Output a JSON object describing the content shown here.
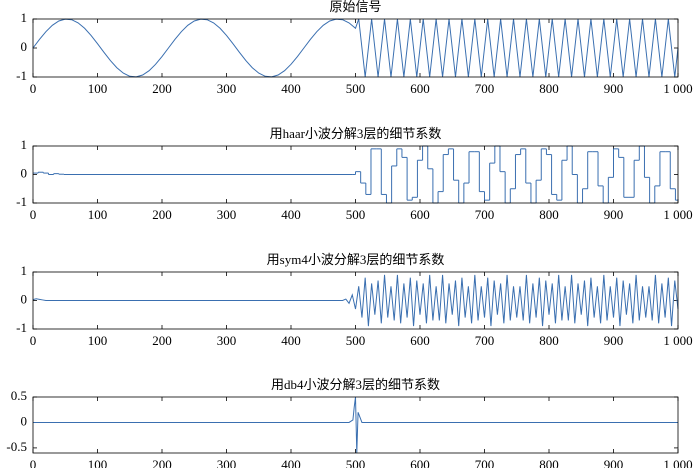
{
  "chart_data": [
    {
      "type": "line",
      "title": "原始信号",
      "color": "#3a6fb0",
      "xlim": [
        0,
        1000
      ],
      "ylim": [
        -1,
        1
      ],
      "xticks": [
        0,
        100,
        200,
        300,
        400,
        500,
        600,
        700,
        800,
        900,
        {
          "value": 1000,
          "label": "1 000"
        }
      ],
      "yticks": [
        -1,
        0,
        1
      ],
      "x": [
        0,
        10,
        20,
        30,
        40,
        50,
        60,
        70,
        80,
        90,
        100,
        110,
        120,
        130,
        140,
        150,
        160,
        170,
        180,
        190,
        200,
        210,
        220,
        230,
        240,
        250,
        260,
        270,
        280,
        290,
        300,
        310,
        320,
        330,
        340,
        350,
        360,
        370,
        380,
        390,
        400,
        410,
        420,
        430,
        440,
        450,
        460,
        470,
        480,
        490,
        500,
        505,
        510,
        515,
        520,
        525,
        530,
        535,
        540,
        545,
        550,
        555,
        560,
        565,
        570,
        575,
        580,
        585,
        590,
        595,
        600,
        605,
        610,
        615,
        620,
        625,
        630,
        635,
        640,
        645,
        650,
        655,
        660,
        665,
        670,
        675,
        680,
        685,
        690,
        695,
        700,
        705,
        710,
        715,
        720,
        725,
        730,
        735,
        740,
        745,
        750,
        755,
        760,
        765,
        770,
        775,
        780,
        785,
        790,
        795,
        800,
        805,
        810,
        815,
        820,
        825,
        830,
        835,
        840,
        845,
        850,
        855,
        860,
        865,
        870,
        875,
        880,
        885,
        890,
        895,
        900,
        905,
        910,
        915,
        920,
        925,
        930,
        935,
        940,
        945,
        950,
        955,
        960,
        965,
        970,
        975,
        980,
        985,
        990,
        995,
        1000
      ],
      "values": [
        0,
        0.295,
        0.563,
        0.782,
        0.931,
        0.997,
        0.975,
        0.866,
        0.68,
        0.434,
        0.149,
        -0.149,
        -0.434,
        -0.68,
        -0.866,
        -0.975,
        -0.997,
        -0.931,
        -0.782,
        -0.563,
        -0.295,
        0,
        0.295,
        0.563,
        0.782,
        0.931,
        0.997,
        0.975,
        0.866,
        0.68,
        0.434,
        0.149,
        -0.149,
        -0.434,
        -0.68,
        -0.866,
        -0.975,
        -0.997,
        -0.931,
        -0.782,
        -0.563,
        -0.295,
        0,
        0.295,
        0.563,
        0.782,
        0.931,
        0.997,
        0.975,
        0.866,
        0.68,
        1,
        0,
        -1,
        0,
        1,
        0,
        -1,
        0,
        1,
        0,
        -1,
        0,
        1,
        0,
        -1,
        0,
        1,
        0,
        -1,
        0,
        1,
        0,
        -1,
        0,
        1,
        0,
        -1,
        0,
        1,
        0,
        -1,
        0,
        1,
        0,
        -1,
        0,
        1,
        0,
        -1,
        0,
        1,
        0,
        -1,
        0,
        1,
        0,
        -1,
        0,
        1,
        0,
        -1,
        0,
        1,
        0,
        -1,
        0,
        1,
        0,
        -1,
        0,
        1,
        0,
        -1,
        0,
        1,
        0,
        -1,
        0,
        1,
        0,
        -1,
        0,
        1,
        0,
        -1,
        0,
        1,
        0,
        -1,
        0,
        1,
        0,
        -1,
        0,
        1,
        0,
        -1,
        0,
        1,
        0,
        -1,
        0,
        1,
        0,
        -1,
        0,
        1,
        0,
        -1,
        0
      ]
    },
    {
      "type": "line",
      "drawstyle": "steps-post",
      "title": "用haar小波分解3层的细节系数",
      "color": "#3a6fb0",
      "xlim": [
        0,
        1000
      ],
      "ylim": [
        -1,
        1
      ],
      "xticks": [
        0,
        100,
        200,
        300,
        400,
        500,
        600,
        700,
        800,
        900,
        {
          "value": 1000,
          "label": "1 000"
        }
      ],
      "yticks": [
        -1,
        0,
        1
      ],
      "x": [
        0,
        8,
        16,
        24,
        32,
        40,
        48,
        496,
        500,
        508,
        516,
        524,
        532,
        540,
        548,
        556,
        564,
        572,
        580,
        588,
        596,
        604,
        612,
        620,
        628,
        636,
        644,
        652,
        660,
        668,
        676,
        684,
        692,
        700,
        708,
        716,
        724,
        732,
        740,
        748,
        756,
        764,
        772,
        780,
        788,
        796,
        804,
        812,
        820,
        828,
        836,
        844,
        852,
        860,
        868,
        876,
        884,
        892,
        900,
        908,
        916,
        924,
        932,
        940,
        948,
        956,
        964,
        972,
        980,
        988,
        996,
        1000
      ],
      "values": [
        0.05,
        0.08,
        0.05,
        0,
        0.03,
        0.01,
        0,
        0,
        0.1,
        -0.3,
        -0.7,
        0.9,
        0.9,
        -0.7,
        -1,
        0.3,
        0.9,
        0.6,
        -0.9,
        -0.8,
        0.5,
        1,
        0.2,
        -1,
        -0.6,
        0.7,
        0.9,
        -0.2,
        -1,
        -0.3,
        0.8,
        0.8,
        -0.6,
        -0.9,
        0.4,
        1,
        0.1,
        -1,
        -0.5,
        0.7,
        0.9,
        -0.3,
        -1,
        -0.2,
        0.9,
        0.7,
        -0.7,
        -0.9,
        0.5,
        1,
        0,
        -1,
        -0.5,
        0.8,
        0.8,
        -0.4,
        -1,
        -0.1,
        0.9,
        0.6,
        -0.8,
        -0.8,
        0.5,
        1,
        -0.1,
        -1,
        -0.4,
        0.8,
        0.8,
        -0.5,
        -0.9,
        -0.9
      ]
    },
    {
      "type": "line",
      "title": "用sym4小波分解3层的细节系数",
      "color": "#3a6fb0",
      "xlim": [
        0,
        1000
      ],
      "ylim": [
        -1,
        1
      ],
      "xticks": [
        0,
        100,
        200,
        300,
        400,
        500,
        600,
        700,
        800,
        900,
        {
          "value": 1000,
          "label": "1 000"
        }
      ],
      "yticks": [
        -1,
        0,
        1
      ],
      "x": [
        0,
        5,
        10,
        15,
        20,
        30,
        480,
        485,
        490,
        495,
        500,
        505,
        510,
        515,
        520,
        525,
        530,
        535,
        540,
        545,
        550,
        555,
        560,
        565,
        570,
        575,
        580,
        585,
        590,
        595,
        600,
        605,
        610,
        615,
        620,
        625,
        630,
        635,
        640,
        645,
        650,
        655,
        660,
        665,
        670,
        675,
        680,
        685,
        690,
        695,
        700,
        705,
        710,
        715,
        720,
        725,
        730,
        735,
        740,
        745,
        750,
        755,
        760,
        765,
        770,
        775,
        780,
        785,
        790,
        795,
        800,
        805,
        810,
        815,
        820,
        825,
        830,
        835,
        840,
        845,
        850,
        855,
        860,
        865,
        870,
        875,
        880,
        885,
        890,
        895,
        900,
        905,
        910,
        915,
        920,
        925,
        930,
        935,
        940,
        945,
        950,
        955,
        960,
        965,
        970,
        975,
        980,
        985,
        990,
        995,
        1000
      ],
      "values": [
        0.03,
        0.06,
        0.04,
        0.02,
        0,
        0,
        0,
        0.05,
        -0.1,
        0.2,
        -0.3,
        0.5,
        -0.6,
        0.8,
        -0.9,
        0.6,
        -0.5,
        0.7,
        -0.8,
        0.9,
        -0.6,
        0.5,
        -0.7,
        0.9,
        -0.8,
        0.6,
        -0.6,
        0.8,
        -0.9,
        0.7,
        -0.5,
        0.6,
        -0.8,
        0.9,
        -0.7,
        0.5,
        -0.7,
        0.9,
        -0.8,
        0.6,
        -0.5,
        0.7,
        -0.9,
        0.8,
        -0.6,
        0.5,
        -0.8,
        0.9,
        -0.7,
        0.5,
        -0.6,
        0.8,
        -0.9,
        0.7,
        -0.5,
        0.6,
        -0.8,
        0.9,
        -0.7,
        0.5,
        -0.6,
        0.5,
        -0.7,
        0.9,
        -0.8,
        0.6,
        -0.6,
        0.8,
        -0.9,
        0.7,
        -0.5,
        0.6,
        -0.8,
        0.9,
        -0.7,
        0.5,
        -0.7,
        0.9,
        -0.8,
        0.6,
        -0.5,
        0.7,
        -0.9,
        0.8,
        -0.6,
        0.5,
        -0.8,
        0.9,
        -0.7,
        0.5,
        -0.6,
        0.8,
        -0.9,
        0.7,
        -0.5,
        0.6,
        -0.8,
        0.9,
        -0.7,
        0.5,
        -0.6,
        0.5,
        -0.7,
        0.9,
        -0.8,
        0.6,
        -0.6,
        0.8,
        -0.9,
        0.7,
        -0.3
      ]
    },
    {
      "type": "line",
      "title": "用db4小波分解3层的细节系数",
      "color": "#3a6fb0",
      "xlim": [
        0,
        1000
      ],
      "ylim": [
        -0.6,
        0.5
      ],
      "xticks": [
        0,
        100,
        200,
        300,
        400,
        500,
        600,
        700,
        800,
        900,
        {
          "value": 1000,
          "label": "1 000"
        }
      ],
      "yticks": [
        -0.5,
        0,
        0.5
      ],
      "x": [
        0,
        490,
        496,
        498,
        500,
        502,
        504,
        510,
        1000
      ],
      "values": [
        0,
        0,
        0.05,
        0.3,
        0.5,
        -0.6,
        0.2,
        0,
        0
      ]
    }
  ]
}
